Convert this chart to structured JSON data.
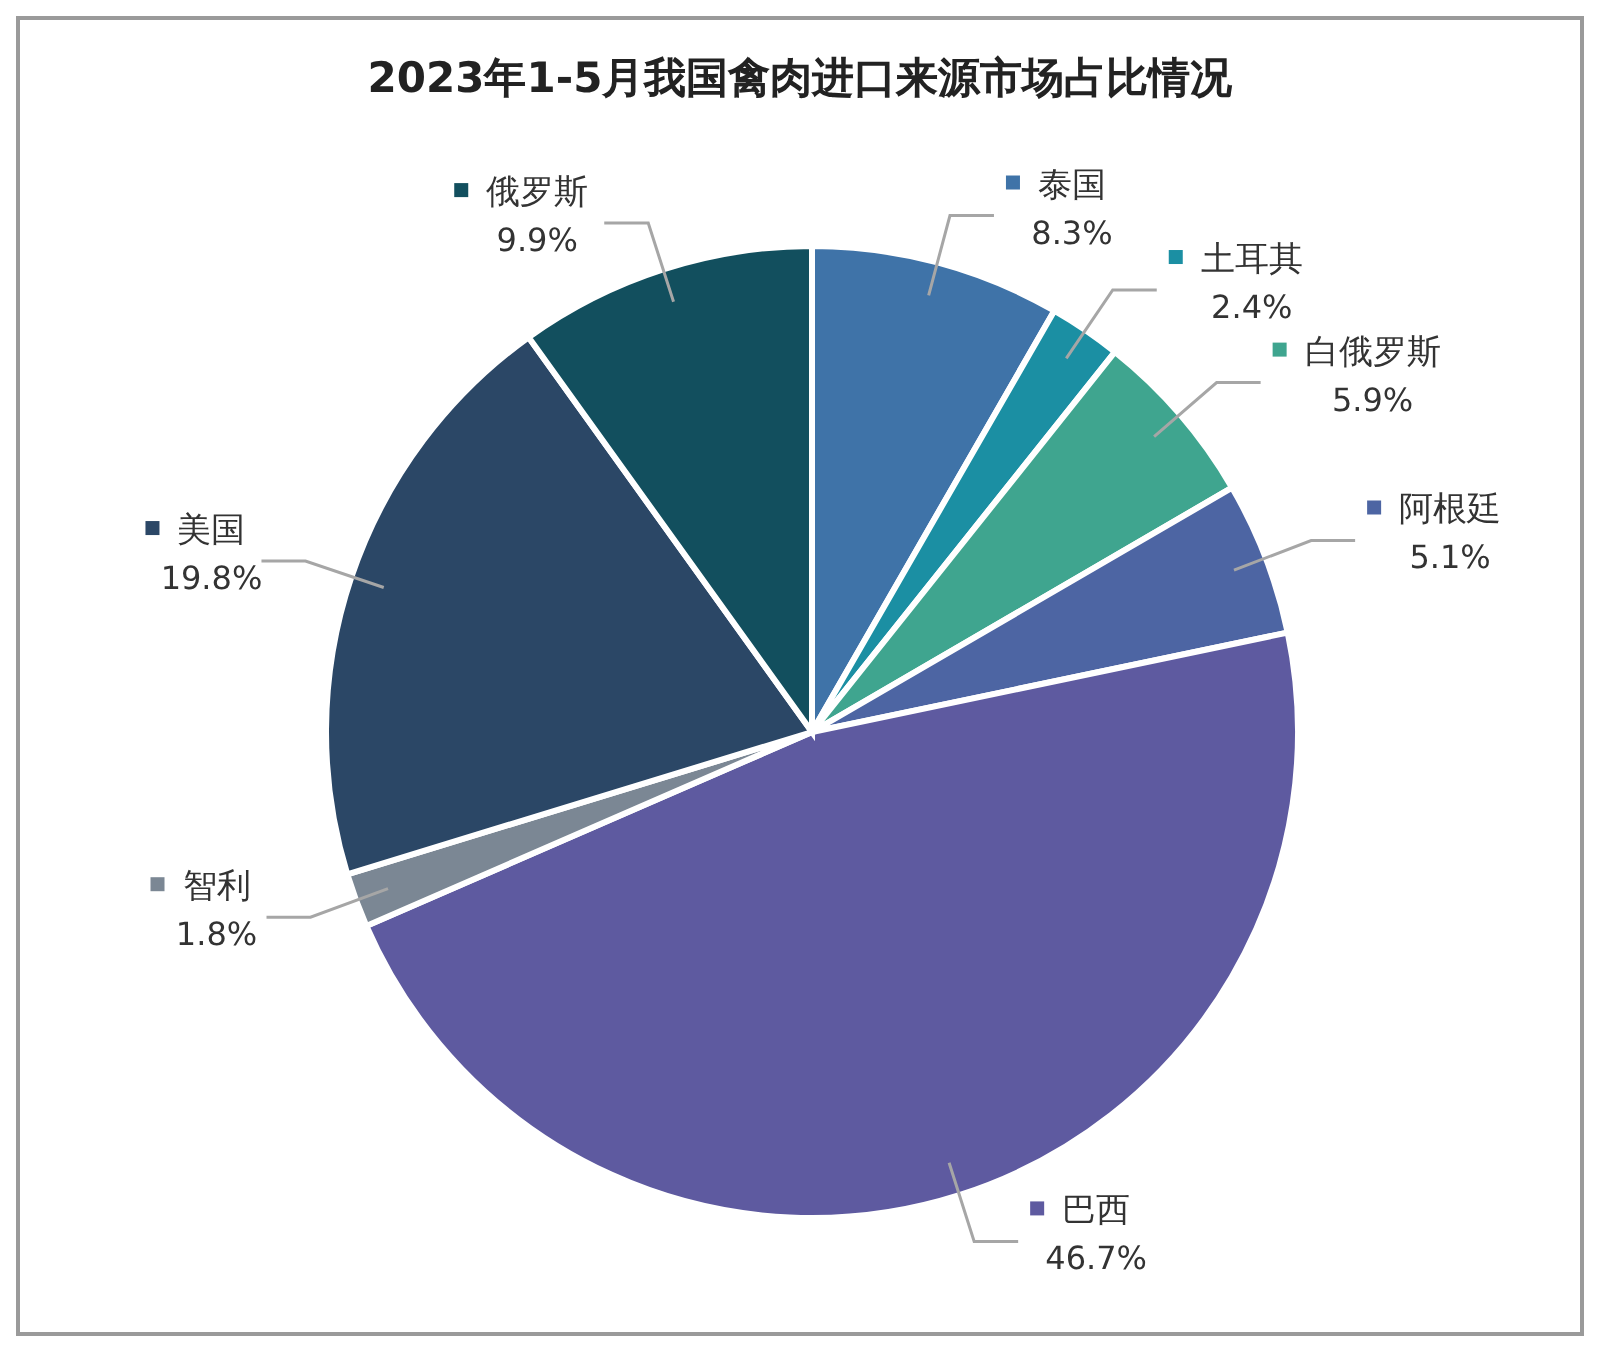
{
  "chart_data": {
    "type": "pie",
    "title": "2023年1-5月我国禽肉进口来源市场占比情况",
    "categories": [
      "泰国",
      "土耳其",
      "白俄罗斯",
      "阿根廷",
      "巴西",
      "智利",
      "美国",
      "俄罗斯"
    ],
    "values": [
      8.3,
      2.4,
      5.9,
      5.1,
      46.7,
      1.8,
      19.8,
      9.9
    ],
    "value_labels": [
      "8.3%",
      "2.4%",
      "5.9%",
      "5.1%",
      "46.7%",
      "1.8%",
      "19.8%",
      "9.9%"
    ],
    "colors": [
      "#3f73a8",
      "#1b8fa3",
      "#3fa58f",
      "#4d65a3",
      "#5e5aa0",
      "#7b8794",
      "#2b4766",
      "#124f5e"
    ],
    "legend": "right"
  }
}
